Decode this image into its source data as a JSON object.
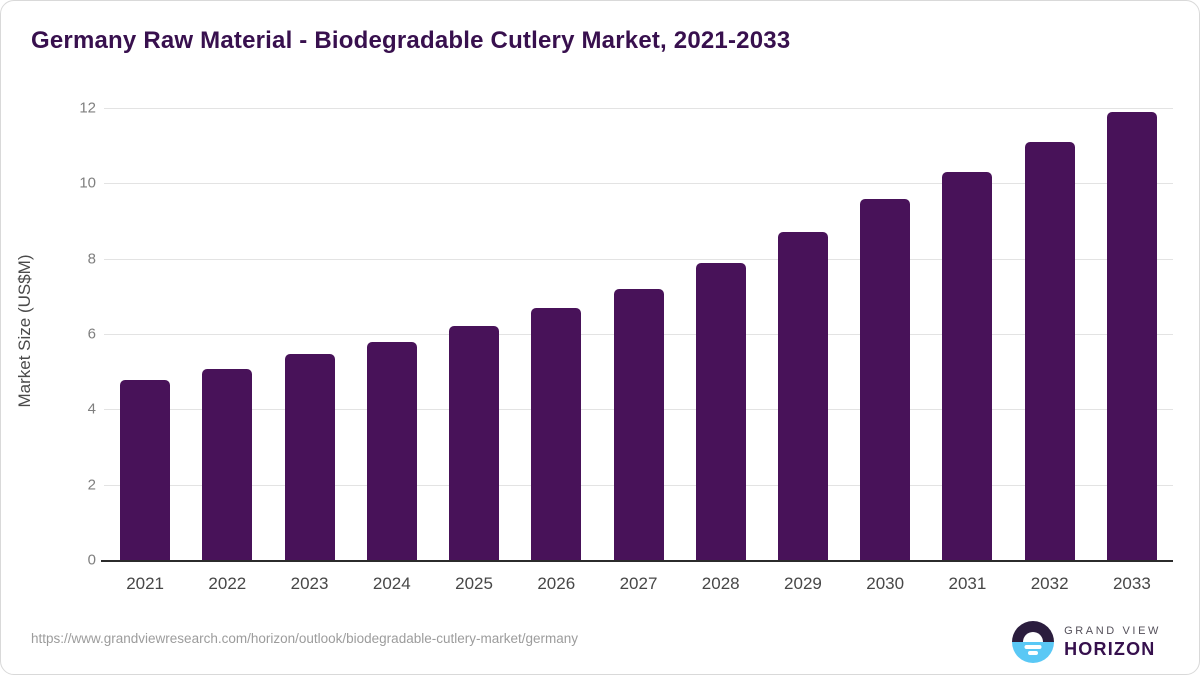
{
  "title": "Germany Raw Material - Biodegradable Cutlery Market, 2021-2033",
  "chart_data": {
    "type": "bar",
    "categories": [
      "2021",
      "2022",
      "2023",
      "2024",
      "2025",
      "2026",
      "2027",
      "2028",
      "2029",
      "2030",
      "2031",
      "2032",
      "2033"
    ],
    "values": [
      4.78,
      5.07,
      5.46,
      5.8,
      6.2,
      6.69,
      7.19,
      7.89,
      8.7,
      9.58,
      10.3,
      11.1,
      11.89
    ],
    "title": "Germany Raw Material - Biodegradable Cutlery Market, 2021-2033",
    "xlabel": "",
    "ylabel": "Market Size (US$M)",
    "ylim": [
      0,
      12
    ],
    "yticks": [
      0,
      2,
      4,
      6,
      8,
      10,
      12
    ],
    "grid": true,
    "legend": false,
    "bar_color": "#481259"
  },
  "colors": {
    "title": "#38104e",
    "bar": "#481259",
    "gridline": "#e3e3e3",
    "axis_line": "#2b2b2b",
    "y_tick_text": "#7f7f7f",
    "x_tick_text": "#474747",
    "footer_url_text": "#9c9c9c",
    "logo_navy": "#2b1d3e",
    "logo_blue": "#5ac8f5"
  },
  "footer": {
    "source_url": "https://www.grandviewresearch.com/horizon/outlook/biodegradable-cutlery-market/germany",
    "logo": {
      "line1": "GRAND VIEW",
      "line2": "HORIZON"
    }
  }
}
